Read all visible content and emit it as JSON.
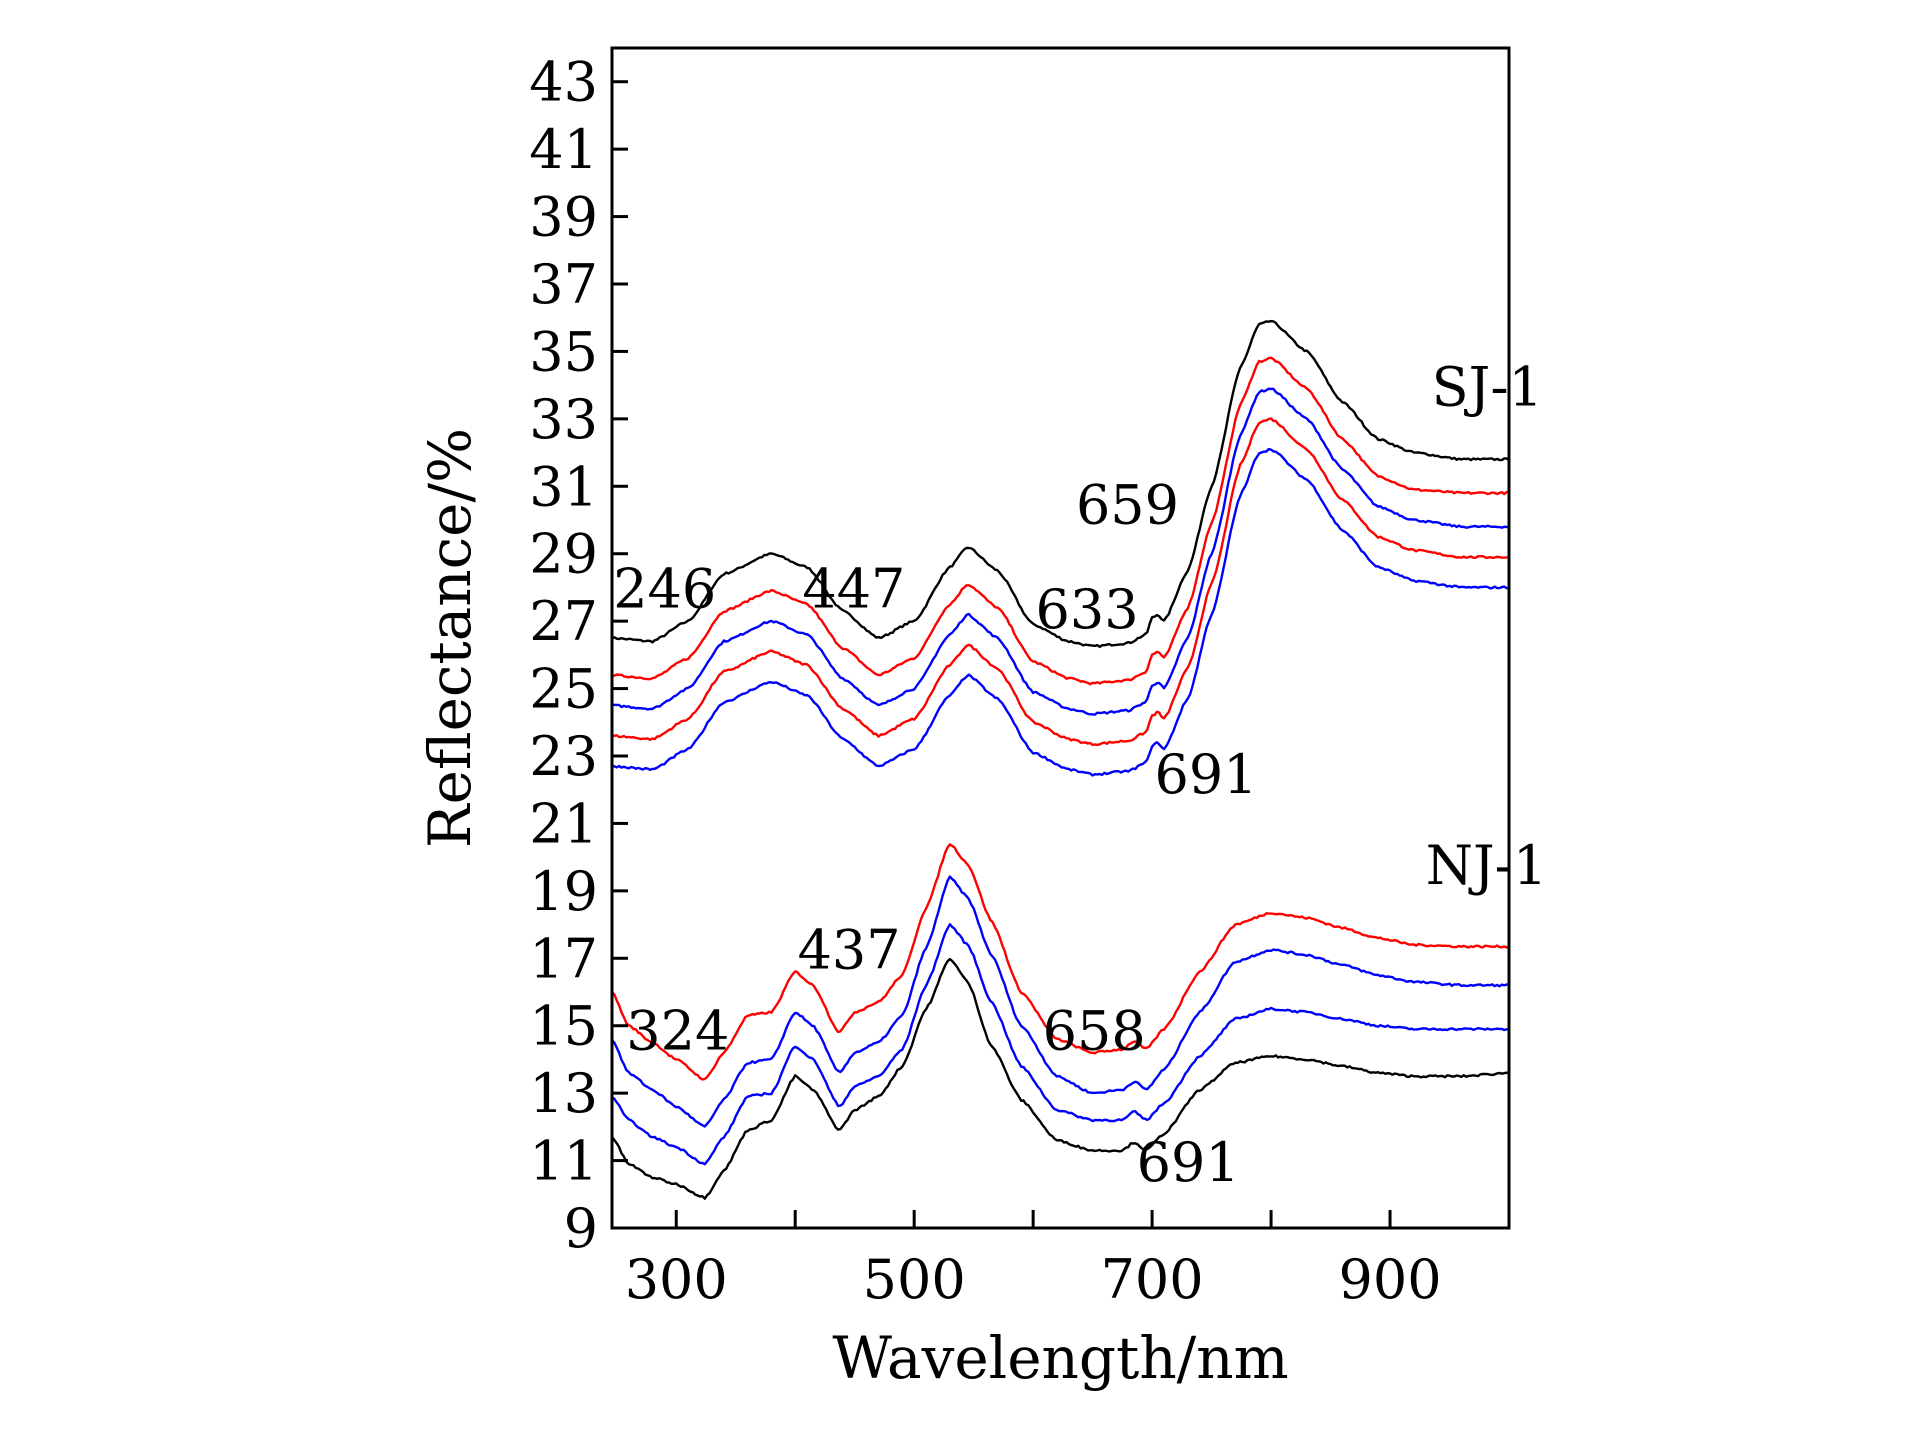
{
  "chart_data": {
    "type": "line",
    "xlabel": "Wavelength/nm",
    "ylabel": "Reflectance/%",
    "xlim": [
      246,
      1000
    ],
    "ylim": [
      9,
      44
    ],
    "x_ticks": [
      300,
      500,
      700,
      900
    ],
    "x_minor_ticks": [
      400,
      600,
      800,
      1000
    ],
    "y_ticks": [
      9,
      11,
      13,
      15,
      17,
      19,
      21,
      23,
      25,
      27,
      29,
      31,
      33,
      35,
      37,
      39,
      41,
      43
    ],
    "grid": false,
    "series": [
      {
        "name": "SJ-1 (1)",
        "color": "#000000",
        "points": [
          [
            246,
            26.5
          ],
          [
            280,
            26.4
          ],
          [
            310,
            27.0
          ],
          [
            340,
            28.4
          ],
          [
            380,
            29.0
          ],
          [
            410,
            28.6
          ],
          [
            440,
            27.3
          ],
          [
            470,
            26.5
          ],
          [
            500,
            27.0
          ],
          [
            530,
            28.6
          ],
          [
            545,
            29.2
          ],
          [
            570,
            28.5
          ],
          [
            600,
            26.9
          ],
          [
            630,
            26.4
          ],
          [
            650,
            26.25
          ],
          [
            680,
            26.35
          ],
          [
            695,
            26.6
          ],
          [
            700,
            27.1
          ],
          [
            705,
            27.2
          ],
          [
            710,
            27.0
          ],
          [
            730,
            28.5
          ],
          [
            750,
            31.0
          ],
          [
            775,
            34.6
          ],
          [
            790,
            35.8
          ],
          [
            800,
            35.9
          ],
          [
            830,
            35.0
          ],
          [
            860,
            33.5
          ],
          [
            890,
            32.4
          ],
          [
            920,
            32.0
          ],
          [
            960,
            31.8
          ],
          [
            1000,
            31.8
          ]
        ]
      },
      {
        "name": "SJ-1 (2)",
        "color": "#ff0000",
        "points": [
          [
            246,
            25.4
          ],
          [
            280,
            25.3
          ],
          [
            310,
            25.9
          ],
          [
            340,
            27.3
          ],
          [
            380,
            27.9
          ],
          [
            410,
            27.5
          ],
          [
            440,
            26.2
          ],
          [
            470,
            25.4
          ],
          [
            500,
            25.9
          ],
          [
            530,
            27.5
          ],
          [
            545,
            28.1
          ],
          [
            570,
            27.4
          ],
          [
            600,
            25.8
          ],
          [
            630,
            25.3
          ],
          [
            650,
            25.15
          ],
          [
            680,
            25.25
          ],
          [
            695,
            25.5
          ],
          [
            700,
            26.0
          ],
          [
            705,
            26.1
          ],
          [
            710,
            25.9
          ],
          [
            730,
            27.4
          ],
          [
            750,
            29.9
          ],
          [
            775,
            33.5
          ],
          [
            790,
            34.7
          ],
          [
            800,
            34.8
          ],
          [
            830,
            33.9
          ],
          [
            860,
            32.4
          ],
          [
            890,
            31.3
          ],
          [
            920,
            30.9
          ],
          [
            960,
            30.8
          ],
          [
            1000,
            30.8
          ]
        ]
      },
      {
        "name": "SJ-1 (3)",
        "color": "#0000ff",
        "points": [
          [
            246,
            24.5
          ],
          [
            280,
            24.4
          ],
          [
            310,
            25.0
          ],
          [
            340,
            26.4
          ],
          [
            380,
            27.0
          ],
          [
            410,
            26.6
          ],
          [
            440,
            25.3
          ],
          [
            470,
            24.5
          ],
          [
            500,
            25.0
          ],
          [
            530,
            26.6
          ],
          [
            545,
            27.2
          ],
          [
            570,
            26.5
          ],
          [
            600,
            24.9
          ],
          [
            630,
            24.4
          ],
          [
            650,
            24.25
          ],
          [
            680,
            24.35
          ],
          [
            695,
            24.6
          ],
          [
            700,
            25.1
          ],
          [
            705,
            25.2
          ],
          [
            710,
            25.0
          ],
          [
            730,
            26.5
          ],
          [
            750,
            29.0
          ],
          [
            775,
            32.6
          ],
          [
            790,
            33.8
          ],
          [
            800,
            33.9
          ],
          [
            830,
            33.0
          ],
          [
            860,
            31.5
          ],
          [
            890,
            30.4
          ],
          [
            920,
            30.0
          ],
          [
            960,
            29.8
          ],
          [
            1000,
            29.8
          ]
        ]
      },
      {
        "name": "SJ-1 (4)",
        "color": "#ff0000",
        "points": [
          [
            246,
            23.6
          ],
          [
            280,
            23.5
          ],
          [
            310,
            24.1
          ],
          [
            340,
            25.5
          ],
          [
            380,
            26.1
          ],
          [
            410,
            25.7
          ],
          [
            440,
            24.4
          ],
          [
            470,
            23.6
          ],
          [
            500,
            24.1
          ],
          [
            530,
            25.7
          ],
          [
            545,
            26.3
          ],
          [
            570,
            25.6
          ],
          [
            600,
            24.0
          ],
          [
            630,
            23.5
          ],
          [
            650,
            23.35
          ],
          [
            680,
            23.45
          ],
          [
            695,
            23.7
          ],
          [
            700,
            24.2
          ],
          [
            705,
            24.3
          ],
          [
            710,
            24.1
          ],
          [
            730,
            25.6
          ],
          [
            750,
            28.1
          ],
          [
            775,
            31.7
          ],
          [
            790,
            32.9
          ],
          [
            800,
            33.0
          ],
          [
            830,
            32.1
          ],
          [
            860,
            30.6
          ],
          [
            890,
            29.5
          ],
          [
            920,
            29.1
          ],
          [
            960,
            28.9
          ],
          [
            1000,
            28.9
          ]
        ]
      },
      {
        "name": "SJ-1 (5)",
        "color": "#0000ff",
        "points": [
          [
            246,
            22.7
          ],
          [
            280,
            22.6
          ],
          [
            310,
            23.2
          ],
          [
            340,
            24.6
          ],
          [
            380,
            25.2
          ],
          [
            410,
            24.8
          ],
          [
            440,
            23.5
          ],
          [
            470,
            22.7
          ],
          [
            500,
            23.2
          ],
          [
            530,
            24.8
          ],
          [
            545,
            25.4
          ],
          [
            570,
            24.7
          ],
          [
            600,
            23.1
          ],
          [
            630,
            22.6
          ],
          [
            650,
            22.45
          ],
          [
            680,
            22.55
          ],
          [
            695,
            22.8
          ],
          [
            700,
            23.3
          ],
          [
            705,
            23.4
          ],
          [
            710,
            23.2
          ],
          [
            730,
            24.7
          ],
          [
            750,
            27.2
          ],
          [
            775,
            30.8
          ],
          [
            790,
            32.0
          ],
          [
            800,
            32.1
          ],
          [
            830,
            31.2
          ],
          [
            860,
            29.7
          ],
          [
            890,
            28.6
          ],
          [
            920,
            28.2
          ],
          [
            960,
            28.0
          ],
          [
            1000,
            28.0
          ]
        ]
      },
      {
        "name": "NJ-1 (1)",
        "color": "#ff0000",
        "points": [
          [
            246,
            16.0
          ],
          [
            260,
            15.0
          ],
          [
            280,
            14.5
          ],
          [
            300,
            14.0
          ],
          [
            324,
            13.4
          ],
          [
            340,
            14.2
          ],
          [
            360,
            15.3
          ],
          [
            380,
            15.4
          ],
          [
            400,
            16.6
          ],
          [
            415,
            16.2
          ],
          [
            437,
            14.8
          ],
          [
            450,
            15.4
          ],
          [
            470,
            15.7
          ],
          [
            490,
            16.5
          ],
          [
            510,
            18.5
          ],
          [
            530,
            20.4
          ],
          [
            545,
            19.8
          ],
          [
            565,
            18.1
          ],
          [
            590,
            16.0
          ],
          [
            620,
            14.6
          ],
          [
            650,
            14.2
          ],
          [
            675,
            14.3
          ],
          [
            685,
            14.55
          ],
          [
            695,
            14.3
          ],
          [
            710,
            14.9
          ],
          [
            740,
            16.6
          ],
          [
            770,
            18.0
          ],
          [
            800,
            18.35
          ],
          [
            830,
            18.2
          ],
          [
            860,
            17.9
          ],
          [
            890,
            17.6
          ],
          [
            920,
            17.4
          ],
          [
            960,
            17.35
          ],
          [
            1000,
            17.35
          ]
        ]
      },
      {
        "name": "NJ-1 (2)",
        "color": "#0000ff",
        "points": [
          [
            246,
            14.6
          ],
          [
            260,
            13.6
          ],
          [
            280,
            13.1
          ],
          [
            300,
            12.6
          ],
          [
            324,
            12.0
          ],
          [
            340,
            12.8
          ],
          [
            360,
            13.9
          ],
          [
            380,
            14.0
          ],
          [
            400,
            15.4
          ],
          [
            415,
            15.0
          ],
          [
            437,
            13.6
          ],
          [
            450,
            14.2
          ],
          [
            470,
            14.5
          ],
          [
            490,
            15.3
          ],
          [
            510,
            17.3
          ],
          [
            530,
            19.4
          ],
          [
            545,
            18.8
          ],
          [
            565,
            17.1
          ],
          [
            590,
            15.0
          ],
          [
            620,
            13.5
          ],
          [
            650,
            13.0
          ],
          [
            675,
            13.1
          ],
          [
            685,
            13.35
          ],
          [
            695,
            13.1
          ],
          [
            710,
            13.7
          ],
          [
            740,
            15.4
          ],
          [
            770,
            16.9
          ],
          [
            800,
            17.25
          ],
          [
            830,
            17.1
          ],
          [
            860,
            16.8
          ],
          [
            890,
            16.5
          ],
          [
            920,
            16.3
          ],
          [
            960,
            16.2
          ],
          [
            1000,
            16.2
          ]
        ]
      },
      {
        "name": "NJ-1 (3)",
        "color": "#0000ff",
        "points": [
          [
            246,
            12.9
          ],
          [
            260,
            12.2
          ],
          [
            280,
            11.7
          ],
          [
            300,
            11.4
          ],
          [
            324,
            10.9
          ],
          [
            340,
            11.7
          ],
          [
            360,
            12.9
          ],
          [
            380,
            13.0
          ],
          [
            400,
            14.4
          ],
          [
            415,
            14.0
          ],
          [
            437,
            12.6
          ],
          [
            450,
            13.2
          ],
          [
            470,
            13.5
          ],
          [
            490,
            14.3
          ],
          [
            510,
            16.2
          ],
          [
            530,
            18.0
          ],
          [
            545,
            17.4
          ],
          [
            565,
            15.7
          ],
          [
            590,
            13.8
          ],
          [
            620,
            12.5
          ],
          [
            650,
            12.2
          ],
          [
            675,
            12.2
          ],
          [
            685,
            12.45
          ],
          [
            695,
            12.2
          ],
          [
            710,
            12.7
          ],
          [
            740,
            14.1
          ],
          [
            770,
            15.2
          ],
          [
            800,
            15.5
          ],
          [
            830,
            15.4
          ],
          [
            860,
            15.2
          ],
          [
            890,
            15.0
          ],
          [
            920,
            14.9
          ],
          [
            960,
            14.9
          ],
          [
            1000,
            14.9
          ]
        ]
      },
      {
        "name": "NJ-1 (4)",
        "color": "#000000",
        "points": [
          [
            246,
            11.7
          ],
          [
            260,
            10.9
          ],
          [
            280,
            10.5
          ],
          [
            300,
            10.3
          ],
          [
            324,
            9.9
          ],
          [
            340,
            10.7
          ],
          [
            360,
            11.9
          ],
          [
            380,
            12.2
          ],
          [
            400,
            13.5
          ],
          [
            415,
            13.1
          ],
          [
            437,
            11.9
          ],
          [
            450,
            12.5
          ],
          [
            470,
            12.9
          ],
          [
            490,
            13.8
          ],
          [
            510,
            15.5
          ],
          [
            530,
            17.0
          ],
          [
            545,
            16.3
          ],
          [
            565,
            14.4
          ],
          [
            590,
            12.8
          ],
          [
            620,
            11.6
          ],
          [
            650,
            11.3
          ],
          [
            675,
            11.3
          ],
          [
            685,
            11.55
          ],
          [
            695,
            11.3
          ],
          [
            710,
            11.8
          ],
          [
            740,
            13.1
          ],
          [
            770,
            13.9
          ],
          [
            800,
            14.1
          ],
          [
            830,
            14.0
          ],
          [
            860,
            13.8
          ],
          [
            890,
            13.6
          ],
          [
            920,
            13.5
          ],
          [
            960,
            13.5
          ],
          [
            1000,
            13.6
          ]
        ]
      }
    ],
    "annotations": [
      {
        "text": "SJ-1",
        "x": 935,
        "y": 33.4,
        "anchor": "start"
      },
      {
        "text": "NJ-1",
        "x": 930,
        "y": 19.2,
        "anchor": "start"
      },
      {
        "text": "246",
        "x": 247,
        "y": 27.4,
        "anchor": "start"
      },
      {
        "text": "447",
        "x": 406,
        "y": 27.4,
        "anchor": "start"
      },
      {
        "text": "633",
        "x": 602,
        "y": 26.8,
        "anchor": "start"
      },
      {
        "text": "659",
        "x": 636,
        "y": 29.9,
        "anchor": "start"
      },
      {
        "text": "691",
        "x": 702,
        "y": 21.9,
        "anchor": "start"
      },
      {
        "text": "324",
        "x": 258,
        "y": 14.3,
        "anchor": "start"
      },
      {
        "text": "437",
        "x": 402,
        "y": 16.7,
        "anchor": "start"
      },
      {
        "text": "658",
        "x": 608,
        "y": 14.3,
        "anchor": "start"
      },
      {
        "text": "691",
        "x": 687,
        "y": 10.4,
        "anchor": "start"
      }
    ]
  }
}
